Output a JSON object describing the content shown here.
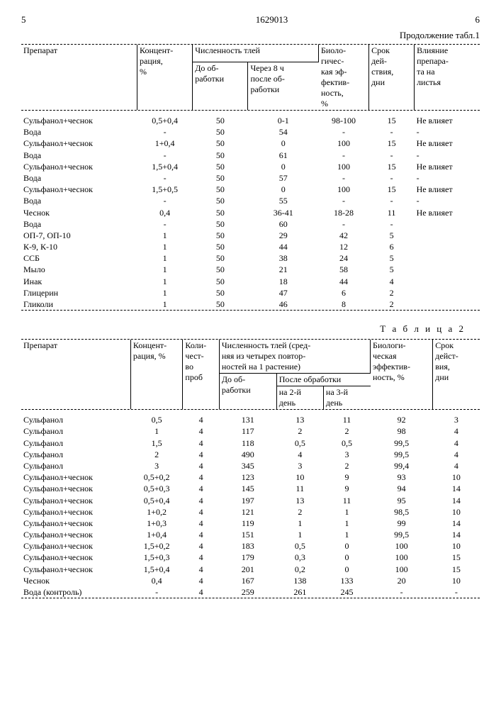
{
  "page_left": "5",
  "doc_id": "1629013",
  "page_right": "6",
  "continuation": "Продолжение табл.1",
  "table1": {
    "headers": {
      "col1": "Препарат",
      "col2": "Концент-\nрация,\n%",
      "col3_group": "Численность тлей",
      "col3a": "До об-\nработки",
      "col3b": "Через 8 ч\nпосле об-\nработки",
      "col4": "Биоло-\nгичес-\nкая эф-\nфектив-\nность,\n%",
      "col5": "Срок\nдей-\nствия,\nдни",
      "col6": "Влияние\nпрепара-\nта на\nлистья"
    },
    "rows": [
      {
        "name": "Сульфанол+чеснок",
        "conc": "0,5+0,4",
        "before": "50",
        "after": "0-1",
        "eff": "98-100",
        "days": "15",
        "influence": "Не влияет"
      },
      {
        "name": "Вода",
        "conc": "-",
        "before": "50",
        "after": "54",
        "eff": "-",
        "days": "-",
        "influence": "-"
      },
      {
        "name": "Сульфанол+чеснок",
        "conc": "1+0,4",
        "before": "50",
        "after": "0",
        "eff": "100",
        "days": "15",
        "influence": "Не влияет"
      },
      {
        "name": "Вода",
        "conc": "-",
        "before": "50",
        "after": "61",
        "eff": "-",
        "days": "-",
        "influence": "-"
      },
      {
        "name": "Сульфанол+чеснок",
        "conc": "1,5+0,4",
        "before": "50",
        "after": "0",
        "eff": "100",
        "days": "15",
        "influence": "Не влияет"
      },
      {
        "name": "Вода",
        "conc": "-",
        "before": "50",
        "after": "57",
        "eff": "-",
        "days": "-",
        "influence": "-"
      },
      {
        "name": "Сульфанол+чеснок",
        "conc": "1,5+0,5",
        "before": "50",
        "after": "0",
        "eff": "100",
        "days": "15",
        "influence": "Не влияет"
      },
      {
        "name": "Вода",
        "conc": "-",
        "before": "50",
        "after": "55",
        "eff": "-",
        "days": "-",
        "influence": "-"
      },
      {
        "name": "Чеснок",
        "conc": "0,4",
        "before": "50",
        "after": "36-41",
        "eff": "18-28",
        "days": "11",
        "influence": "Не влияет"
      },
      {
        "name": "Вода",
        "conc": "-",
        "before": "50",
        "after": "60",
        "eff": "-",
        "days": "-",
        "influence": ""
      },
      {
        "name": "ОП-7, ОП-10",
        "conc": "1",
        "before": "50",
        "after": "29",
        "eff": "42",
        "days": "5",
        "influence": ""
      },
      {
        "name": "К-9, К-10",
        "conc": "1",
        "before": "50",
        "after": "44",
        "eff": "12",
        "days": "6",
        "influence": ""
      },
      {
        "name": "ССБ",
        "conc": "1",
        "before": "50",
        "after": "38",
        "eff": "24",
        "days": "5",
        "influence": ""
      },
      {
        "name": "Мыло",
        "conc": "1",
        "before": "50",
        "after": "21",
        "eff": "58",
        "days": "5",
        "influence": ""
      },
      {
        "name": "Инак",
        "conc": "1",
        "before": "50",
        "after": "18",
        "eff": "44",
        "days": "4",
        "influence": ""
      },
      {
        "name": "Глицерин",
        "conc": "1",
        "before": "50",
        "after": "47",
        "eff": "6",
        "days": "2",
        "influence": ""
      },
      {
        "name": "Гликоли",
        "conc": "1",
        "before": "50",
        "after": "46",
        "eff": "8",
        "days": "2",
        "influence": ""
      }
    ]
  },
  "caption2": "Т а б л и ц а  2",
  "table2": {
    "headers": {
      "col1": "Препарат",
      "col2": "Концент-\nрация, %",
      "col3": "Коли-\nчест-\nво\nпроб",
      "col4_group": "Численность тлей (сред-\nняя из четырех повтор-\nностей на 1 растение)",
      "col4a": "До об-\nработки",
      "col4b_group": "После обработки",
      "col4b1": "на 2-й\nдень",
      "col4b2": "на 3-й\nдень",
      "col5": "Биологи-\nческая\nэффектив-\nность, %",
      "col6": "Срок\nдейст-\nвия,\nдни"
    },
    "rows": [
      {
        "name": "Сульфанол",
        "conc": "0,5",
        "n": "4",
        "before": "131",
        "d2": "13",
        "d3": "11",
        "eff": "92",
        "days": "3"
      },
      {
        "name": "Сульфанол",
        "conc": "1",
        "n": "4",
        "before": "117",
        "d2": "2",
        "d3": "2",
        "eff": "98",
        "days": "4"
      },
      {
        "name": "Сульфанол",
        "conc": "1,5",
        "n": "4",
        "before": "118",
        "d2": "0,5",
        "d3": "0,5",
        "eff": "99,5",
        "days": "4"
      },
      {
        "name": "Сульфанол",
        "conc": "2",
        "n": "4",
        "before": "490",
        "d2": "4",
        "d3": "3",
        "eff": "99,5",
        "days": "4"
      },
      {
        "name": "Сульфанол",
        "conc": "3",
        "n": "4",
        "before": "345",
        "d2": "3",
        "d3": "2",
        "eff": "99,4",
        "days": "4"
      },
      {
        "name": "Сульфанол+чеснок",
        "conc": "0,5+0,2",
        "n": "4",
        "before": "123",
        "d2": "10",
        "d3": "9",
        "eff": "93",
        "days": "10"
      },
      {
        "name": "Сульфанол+чеснок",
        "conc": "0,5+0,3",
        "n": "4",
        "before": "145",
        "d2": "11",
        "d3": "9",
        "eff": "94",
        "days": "14"
      },
      {
        "name": "Сульфанол+чеснок",
        "conc": "0,5+0,4",
        "n": "4",
        "before": "197",
        "d2": "13",
        "d3": "11",
        "eff": "95",
        "days": "14"
      },
      {
        "name": "Сульфанол+чеснок",
        "conc": "1+0,2",
        "n": "4",
        "before": "121",
        "d2": "2",
        "d3": "1",
        "eff": "98,5",
        "days": "10"
      },
      {
        "name": "Сульфанол+чеснок",
        "conc": "1+0,3",
        "n": "4",
        "before": "119",
        "d2": "1",
        "d3": "1",
        "eff": "99",
        "days": "14"
      },
      {
        "name": "Сульфанол+чеснок",
        "conc": "1+0,4",
        "n": "4",
        "before": "151",
        "d2": "1",
        "d3": "1",
        "eff": "99,5",
        "days": "14"
      },
      {
        "name": "Сульфанол+чеснок",
        "conc": "1,5+0,2",
        "n": "4",
        "before": "183",
        "d2": "0,5",
        "d3": "0",
        "eff": "100",
        "days": "10"
      },
      {
        "name": "Сульфанол+чеснок",
        "conc": "1,5+0,3",
        "n": "4",
        "before": "179",
        "d2": "0,3",
        "d3": "0",
        "eff": "100",
        "days": "15"
      },
      {
        "name": "Сульфанол+чеснок",
        "conc": "1,5+0,4",
        "n": "4",
        "before": "201",
        "d2": "0,2",
        "d3": "0",
        "eff": "100",
        "days": "15"
      },
      {
        "name": "Чеснок",
        "conc": "0,4",
        "n": "4",
        "before": "167",
        "d2": "138",
        "d3": "133",
        "eff": "20",
        "days": "10"
      },
      {
        "name": "Вода (контроль)",
        "conc": "-",
        "n": "4",
        "before": "259",
        "d2": "261",
        "d3": "245",
        "eff": "-",
        "days": "-"
      }
    ]
  }
}
